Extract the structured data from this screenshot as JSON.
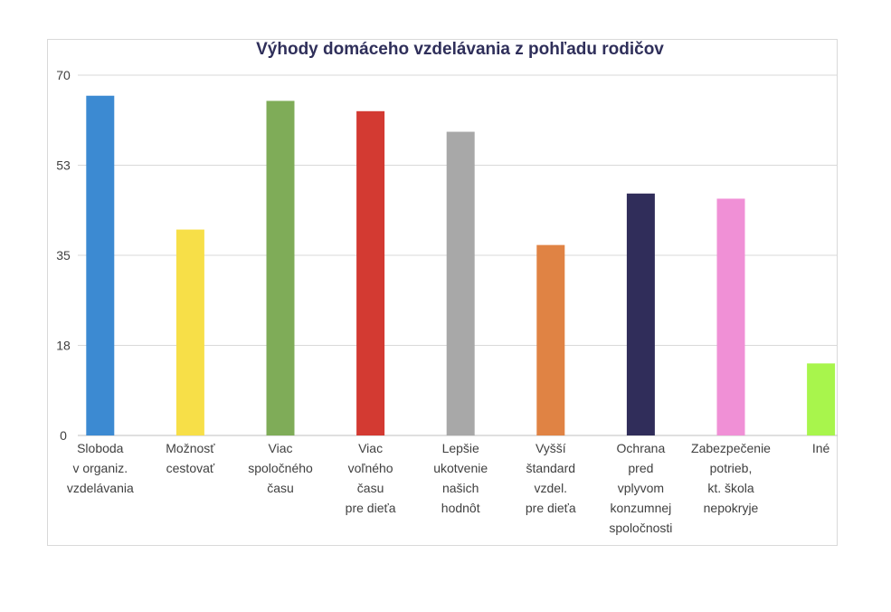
{
  "chart_data": {
    "type": "bar",
    "title": "Výhody domáceho vzdelávania z pohľadu rodičov",
    "xlabel": "",
    "ylabel": "",
    "ylim": [
      0,
      70
    ],
    "yticks": [
      "0",
      "18",
      "35",
      "53",
      "70"
    ],
    "ytick_values": [
      0,
      17.5,
      35,
      52.5,
      70
    ],
    "grid": true,
    "legend": "none",
    "categories": [
      [
        "Sloboda",
        "v organiz.",
        "vzdelávania"
      ],
      [
        "Možnosť",
        "cestovať"
      ],
      [
        "Viac",
        "spoločného",
        "času"
      ],
      [
        "Viac",
        "voľného",
        "času",
        "pre dieťa"
      ],
      [
        "Lepšie",
        "ukotvenie",
        "našich",
        "hodnôt"
      ],
      [
        "Vyšší",
        "štandard",
        "vzdel.",
        "pre dieťa"
      ],
      [
        "Ochrana",
        "pred",
        "vplyvom",
        "konzumnej",
        "spoločnosti"
      ],
      [
        "Zabezpečenie",
        "potrieb,",
        "kt. škola",
        "nepokryje"
      ],
      [
        "Iné"
      ]
    ],
    "values": [
      66,
      40,
      65,
      63,
      59,
      37,
      47,
      46,
      14
    ],
    "colors": [
      "#3c8ad2",
      "#f7df48",
      "#7fac58",
      "#d33a32",
      "#a8a8a8",
      "#e08344",
      "#302d5a",
      "#f090d6",
      "#a8f54c"
    ]
  }
}
